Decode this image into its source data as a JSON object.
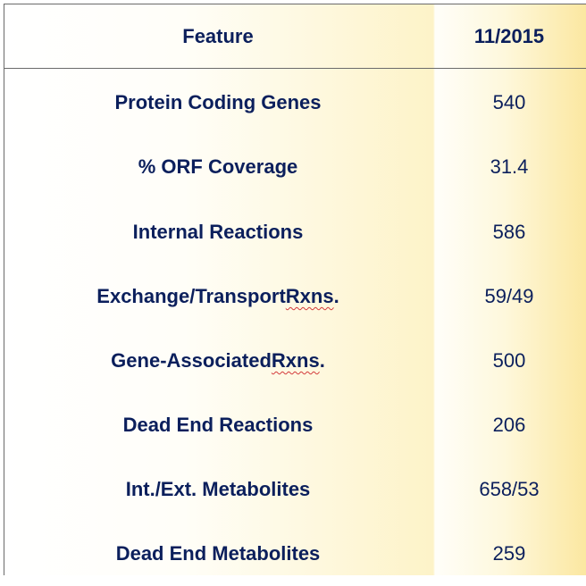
{
  "header": {
    "feature": "Feature",
    "date": "11/2015"
  },
  "rows": [
    {
      "feature": "Protein Coding Genes",
      "value": "540"
    },
    {
      "feature": "% ORF Coverage",
      "value": "31.4"
    },
    {
      "feature": "Internal Reactions",
      "value": "586"
    },
    {
      "feature_pre": "Exchange/Transport ",
      "feature_sq": "Rxns",
      "feature_post": ".",
      "value": "59/49"
    },
    {
      "feature_pre": "Gene-Associated ",
      "feature_sq": "Rxns",
      "feature_post": ".",
      "value": "500"
    },
    {
      "feature": "Dead End Reactions",
      "value": "206"
    },
    {
      "feature": "Int./Ext. Metabolites",
      "value": "658/53"
    },
    {
      "feature": "Dead End Metabolites",
      "value": "259"
    }
  ]
}
